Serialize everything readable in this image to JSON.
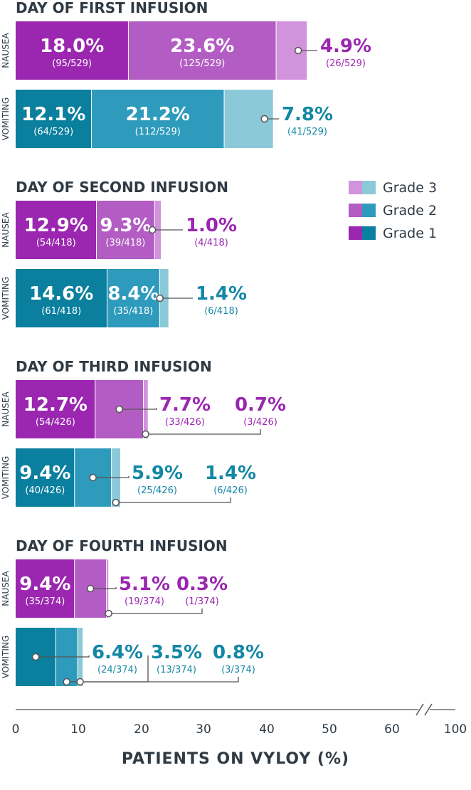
{
  "chart_data": {
    "type": "bar",
    "orientation": "horizontal",
    "stacked": true,
    "xlabel": "PATIENTS ON VYLOY (%)",
    "xlim": [
      0,
      100
    ],
    "x_ticks": [
      "0",
      "10",
      "20",
      "30",
      "40",
      "50",
      "60",
      "100"
    ],
    "axis_break": "between 60 and 100",
    "legend": {
      "placement": "right",
      "entries": [
        {
          "label": "Grade 3",
          "colors": [
            "#d193dc",
            "#8cc9d8"
          ]
        },
        {
          "label": "Grade 2",
          "colors": [
            "#b35dc4",
            "#2e9bbd"
          ]
        },
        {
          "label": "Grade 1",
          "colors": [
            "#9b26b0",
            "#0a7f9e"
          ]
        }
      ]
    },
    "colors": {
      "nausea": [
        "#9b26b0",
        "#b35dc4",
        "#d193dc"
      ],
      "vomiting": [
        "#0a7f9e",
        "#2e9bbd",
        "#8cc9d8"
      ],
      "nausea_text": "#9b26b0",
      "vomiting_text": "#1387a6"
    },
    "panels": [
      {
        "title": "DAY OF FIRST INFUSION",
        "rows": [
          {
            "category": "NAUSEA",
            "values": [
              18.0,
              23.6,
              4.9
            ],
            "labels": [
              "18.0%",
              "23.6%",
              "4.9%"
            ],
            "counts": [
              "(95/529)",
              "(125/529)",
              "(26/529)"
            ]
          },
          {
            "category": "VOMITING",
            "values": [
              12.1,
              21.2,
              7.8
            ],
            "labels": [
              "12.1%",
              "21.2%",
              "7.8%"
            ],
            "counts": [
              "(64/529)",
              "(112/529)",
              "(41/529)"
            ]
          }
        ]
      },
      {
        "title": "DAY OF SECOND INFUSION",
        "rows": [
          {
            "category": "NAUSEA",
            "values": [
              12.9,
              9.3,
              1.0
            ],
            "labels": [
              "12.9%",
              "9.3%",
              "1.0%"
            ],
            "counts": [
              "(54/418)",
              "(39/418)",
              "(4/418)"
            ]
          },
          {
            "category": "VOMITING",
            "values": [
              14.6,
              8.4,
              1.4
            ],
            "labels": [
              "14.6%",
              "8.4%",
              "1.4%"
            ],
            "counts": [
              "(61/418)",
              "(35/418)",
              "(6/418)"
            ]
          }
        ]
      },
      {
        "title": "DAY OF THIRD INFUSION",
        "rows": [
          {
            "category": "NAUSEA",
            "values": [
              12.7,
              7.7,
              0.7
            ],
            "labels": [
              "12.7%",
              "7.7%",
              "0.7%"
            ],
            "counts": [
              "(54/426)",
              "(33/426)",
              "(3/426)"
            ]
          },
          {
            "category": "VOMITING",
            "values": [
              9.4,
              5.9,
              1.4
            ],
            "labels": [
              "9.4%",
              "5.9%",
              "1.4%"
            ],
            "counts": [
              "(40/426)",
              "(25/426)",
              "(6/426)"
            ]
          }
        ]
      },
      {
        "title": "DAY OF FOURTH INFUSION",
        "rows": [
          {
            "category": "NAUSEA",
            "values": [
              9.4,
              5.1,
              0.3
            ],
            "labels": [
              "9.4%",
              "5.1%",
              "0.3%"
            ],
            "counts": [
              "(35/374)",
              "(19/374)",
              "(1/374)"
            ]
          },
          {
            "category": "VOMITING",
            "values": [
              6.4,
              3.5,
              0.8
            ],
            "labels": [
              "6.4%",
              "3.5%",
              "0.8%"
            ],
            "counts": [
              "(24/374)",
              "(13/374)",
              "(3/374)"
            ]
          }
        ]
      }
    ]
  }
}
